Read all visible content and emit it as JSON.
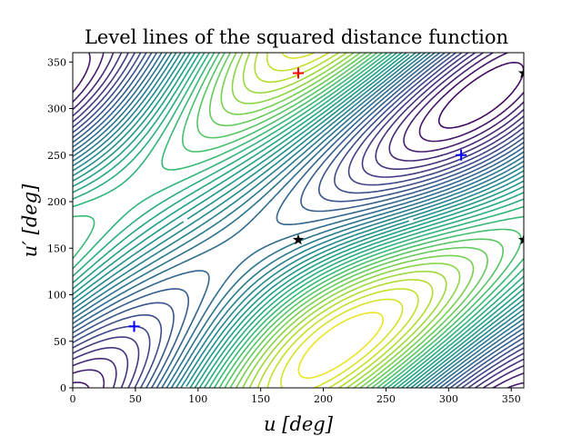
{
  "chart_data": {
    "type": "contour",
    "title": "Level lines of the squared distance function",
    "xlabel": "u [deg]",
    "ylabel": "u′ [deg]",
    "xlim": [
      0,
      360
    ],
    "ylim": [
      0,
      360
    ],
    "xticks": [
      0,
      50,
      100,
      150,
      200,
      250,
      300,
      350
    ],
    "yticks": [
      0,
      50,
      100,
      150,
      200,
      250,
      300,
      350
    ],
    "colormap": "viridis",
    "grid": false,
    "markers": [
      {
        "kind": "plus",
        "color": "#ff0000",
        "x": 180,
        "y": 338
      },
      {
        "kind": "plus",
        "color": "#0000ff",
        "x": 49,
        "y": 66
      },
      {
        "kind": "plus",
        "color": "#0000ff",
        "x": 310,
        "y": 250
      },
      {
        "kind": "star",
        "color": "#000000",
        "x": 180,
        "y": 159
      },
      {
        "kind": "star",
        "color": "#000000",
        "x": 360,
        "y": 338
      },
      {
        "kind": "star",
        "color": "#000000",
        "x": 360,
        "y": 159
      }
    ]
  }
}
